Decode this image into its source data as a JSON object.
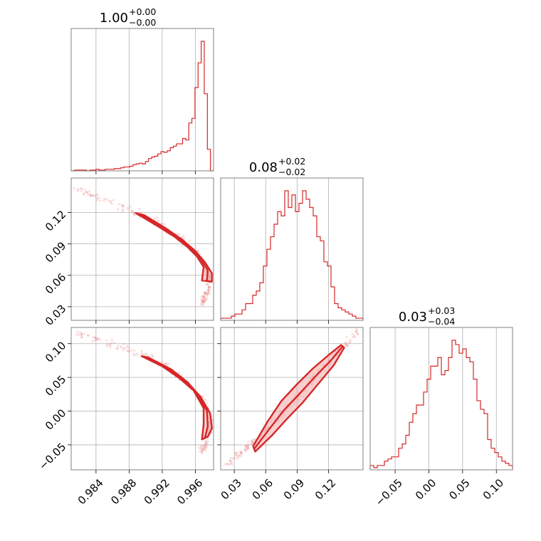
{
  "chart_data": {
    "type": "corner",
    "parameters": [
      {
        "title_main": "1.00",
        "title_upper": "+0.00",
        "title_lower": "−0.00",
        "range": [
          0.981,
          0.9982
        ]
      },
      {
        "title_main": "0.08",
        "title_upper": "+0.02",
        "title_lower": "−0.02",
        "range": [
          0.017,
          0.153
        ]
      },
      {
        "title_main": "0.03",
        "title_upper": "+0.03",
        "title_lower": "−0.04",
        "range": [
          -0.087,
          0.124
        ]
      }
    ],
    "ticks": [
      {
        "values": [
          0.984,
          0.988,
          0.992,
          0.996
        ],
        "labels": [
          "0.984",
          "0.988",
          "0.992",
          "0.996"
        ]
      },
      {
        "values": [
          0.03,
          0.06,
          0.09,
          0.12
        ],
        "labels": [
          "0.03",
          "0.06",
          "0.09",
          "0.12"
        ]
      },
      {
        "values": [
          -0.05,
          0.0,
          0.05,
          0.1
        ],
        "labels": [
          "−0.05",
          "0.00",
          "0.05",
          "0.10"
        ]
      }
    ],
    "histograms": [
      {
        "param": 0,
        "edges": [
          0.981,
          0.9982
        ],
        "counts": [
          0,
          1,
          1,
          1,
          1,
          0,
          1,
          1,
          2,
          1,
          1,
          2,
          2,
          2,
          3,
          3,
          4,
          5,
          5,
          6,
          8,
          9,
          10,
          9,
          12,
          16,
          18,
          19,
          22,
          25,
          24,
          26,
          30,
          32,
          35,
          35,
          42,
          40,
          62,
          68,
          108,
          140,
          168,
          100,
          28,
          0
        ]
      },
      {
        "param": 1,
        "edges": [
          0.017,
          0.153
        ],
        "counts": [
          1,
          1,
          1,
          2,
          3,
          3,
          5,
          8,
          8,
          12,
          14,
          18,
          26,
          34,
          40,
          46,
          52,
          50,
          62,
          54,
          60,
          52,
          56,
          62,
          58,
          54,
          50,
          40,
          38,
          28,
          26,
          16,
          8,
          6,
          5,
          4,
          3,
          2,
          1,
          1
        ]
      },
      {
        "param": 2,
        "edges": [
          -0.087,
          0.124
        ],
        "counts": [
          2,
          1,
          2,
          2,
          4,
          5,
          6,
          6,
          10,
          12,
          16,
          22,
          26,
          30,
          30,
          36,
          42,
          48,
          48,
          52,
          44,
          46,
          52,
          60,
          58,
          54,
          56,
          52,
          50,
          42,
          32,
          28,
          26,
          14,
          10,
          8,
          6,
          4,
          3,
          2
        ]
      }
    ],
    "pairs": [
      {
        "x_param": 0,
        "y_param": 1,
        "ridge": [
          [
            0.9815,
            0.1435
          ],
          [
            0.984,
            0.1345
          ],
          [
            0.988,
            0.1225
          ],
          [
            0.991,
            0.1115
          ],
          [
            0.993,
            0.1015
          ],
          [
            0.9945,
            0.093
          ],
          [
            0.996,
            0.083
          ],
          [
            0.997,
            0.073
          ],
          [
            0.9975,
            0.064
          ],
          [
            0.9978,
            0.056
          ],
          [
            0.9975,
            0.046
          ],
          [
            0.997,
            0.038
          ],
          [
            0.9968,
            0.032
          ]
        ],
        "band_inner": [
          [
            0.9888,
            0.1195
          ],
          [
            0.9915,
            0.1068
          ],
          [
            0.9935,
            0.0968
          ],
          [
            0.995,
            0.0875
          ],
          [
            0.9962,
            0.078
          ],
          [
            0.997,
            0.068
          ],
          [
            0.9968,
            0.055
          ]
        ],
        "band_outer": [
          [
            0.9898,
            0.1175
          ],
          [
            0.9925,
            0.1045
          ],
          [
            0.9945,
            0.0935
          ],
          [
            0.996,
            0.083
          ],
          [
            0.9972,
            0.072
          ],
          [
            0.998,
            0.062
          ],
          [
            0.998,
            0.054
          ]
        ]
      },
      {
        "x_param": 0,
        "y_param": 2,
        "ridge": [
          [
            0.9815,
            0.1165
          ],
          [
            0.9845,
            0.1055
          ],
          [
            0.988,
            0.0915
          ],
          [
            0.991,
            0.0765
          ],
          [
            0.9935,
            0.0565
          ],
          [
            0.9955,
            0.0355
          ],
          [
            0.997,
            0.0135
          ],
          [
            0.9978,
            -0.0085
          ],
          [
            0.9978,
            -0.0285
          ],
          [
            0.9972,
            -0.0505
          ],
          [
            0.9968,
            -0.0605
          ]
        ],
        "band_inner": [
          [
            0.9895,
            0.0815
          ],
          [
            0.992,
            0.0665
          ],
          [
            0.994,
            0.0495
          ],
          [
            0.9958,
            0.0305
          ],
          [
            0.997,
            0.0045
          ],
          [
            0.997,
            -0.0195
          ],
          [
            0.9968,
            -0.042
          ]
        ],
        "band_outer": [
          [
            0.9903,
            0.0795
          ],
          [
            0.993,
            0.0625
          ],
          [
            0.995,
            0.0435
          ],
          [
            0.9966,
            0.0215
          ],
          [
            0.9978,
            -0.0035
          ],
          [
            0.998,
            -0.0255
          ],
          [
            0.9975,
            -0.038
          ]
        ]
      },
      {
        "x_param": 1,
        "y_param": 2,
        "ridge": [
          [
            0.022,
            -0.08
          ],
          [
            0.035,
            -0.063
          ],
          [
            0.045,
            -0.05
          ],
          [
            0.06,
            -0.028
          ],
          [
            0.075,
            -0.005
          ],
          [
            0.09,
            0.02
          ],
          [
            0.105,
            0.046
          ],
          [
            0.12,
            0.072
          ],
          [
            0.135,
            0.098
          ],
          [
            0.15,
            0.122
          ]
        ],
        "band_inner": [
          [
            0.048,
            -0.052
          ],
          [
            0.062,
            -0.015
          ],
          [
            0.075,
            0.015
          ],
          [
            0.09,
            0.04
          ],
          [
            0.105,
            0.063
          ],
          [
            0.12,
            0.083
          ],
          [
            0.132,
            0.098
          ]
        ],
        "band_outer": [
          [
            0.05,
            -0.06
          ],
          [
            0.066,
            -0.036
          ],
          [
            0.08,
            -0.012
          ],
          [
            0.095,
            0.012
          ],
          [
            0.11,
            0.04
          ],
          [
            0.125,
            0.068
          ],
          [
            0.135,
            0.094
          ]
        ]
      }
    ]
  }
}
